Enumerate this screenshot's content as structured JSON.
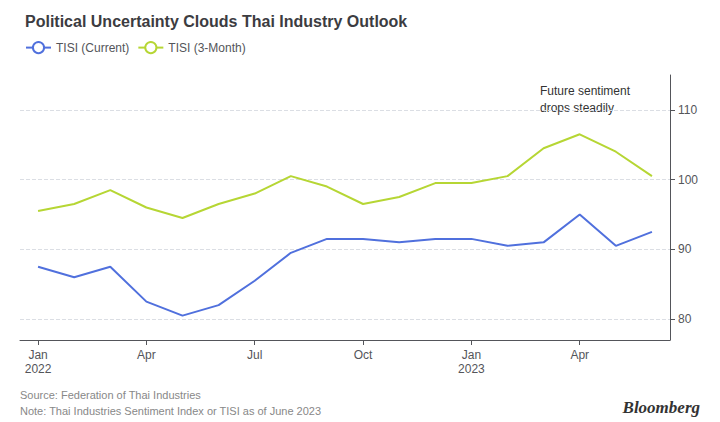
{
  "chart_data": {
    "type": "line",
    "title": "Political Uncertainty Clouds Thai Industry Outlook",
    "categories": [
      "Jan\n2022",
      null,
      null,
      "Apr",
      null,
      null,
      "Jul",
      null,
      null,
      "Oct",
      null,
      null,
      "Jan\n2023",
      null,
      null,
      "Apr",
      null,
      null
    ],
    "series": [
      {
        "name": "TISI (Current)",
        "values": [
          87.5,
          86.0,
          87.5,
          82.5,
          80.5,
          82.0,
          85.5,
          89.5,
          91.5,
          91.5,
          91.0,
          91.5,
          91.5,
          90.5,
          91.0,
          95.0,
          90.5,
          92.5
        ]
      },
      {
        "name": "TISI (3-Month)",
        "values": [
          95.5,
          96.5,
          98.5,
          96.0,
          94.5,
          96.5,
          98.0,
          100.5,
          99.0,
          96.5,
          97.5,
          99.5,
          99.5,
          100.5,
          104.5,
          106.5,
          104.0,
          100.5
        ]
      }
    ],
    "ylim": [
      77,
      115
    ],
    "yticks": [
      80,
      90,
      100,
      110
    ],
    "grid": true,
    "legend": "top-left",
    "annotations": [
      "Future sentiment\ndrops steadily",
      "Source: Federation of Thai Industries",
      "Note: Thai Industries Sentiment Index or TISI as of June 2023",
      "Bloomberg"
    ]
  }
}
